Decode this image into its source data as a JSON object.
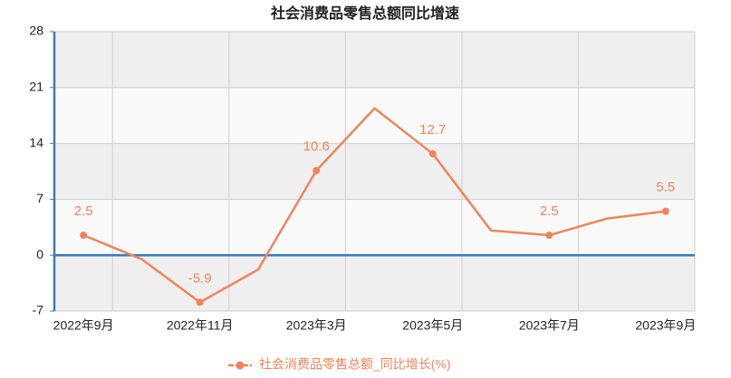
{
  "chart_data": {
    "type": "line",
    "title": "社会消费品零售总额同比增速",
    "categories": [
      "2022年9月",
      null,
      "2022年11月",
      null,
      "2023年3月",
      null,
      "2023年5月",
      null,
      "2023年7月",
      null,
      "2023年9月"
    ],
    "series": [
      {
        "name": "社会消费品零售总额_同比增长(%)",
        "color": "#f0845a",
        "values": [
          2.5,
          -0.5,
          -5.9,
          -1.8,
          10.6,
          18.4,
          12.7,
          3.1,
          2.5,
          4.6,
          5.5
        ],
        "value_labels": [
          "2.5",
          null,
          "-5.9",
          null,
          "10.6",
          null,
          "12.7",
          null,
          "2.5",
          null,
          "5.5"
        ]
      }
    ],
    "ylim": [
      -7,
      28
    ],
    "yticks": [
      -7,
      0,
      7,
      14,
      21,
      28
    ],
    "grid": true,
    "legend": "bottom"
  }
}
